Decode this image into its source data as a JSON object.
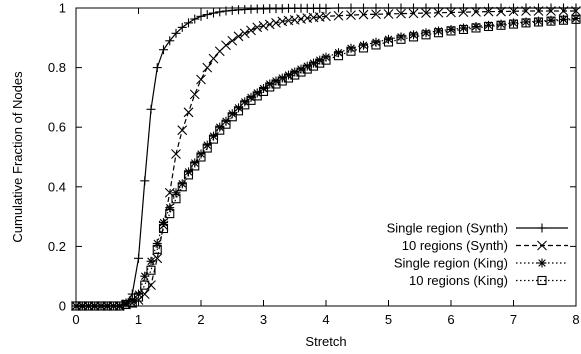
{
  "chart_data": {
    "type": "line",
    "title": "",
    "xlabel": "Stretch",
    "ylabel": "Cumulative Fraction of Nodes",
    "xlim": [
      0,
      8
    ],
    "ylim": [
      0,
      1
    ],
    "x_ticks": [
      "0",
      "1",
      "2",
      "3",
      "4",
      "5",
      "6",
      "7",
      "8"
    ],
    "y_ticks": [
      "0",
      "0.2",
      "0.4",
      "0.6",
      "0.8",
      "1"
    ],
    "grid": false,
    "legend_position": "bottom-right",
    "series": [
      {
        "name": "Single region (Synth)",
        "line_style": "solid",
        "marker": "plus",
        "x": [
          0,
          0.1,
          0.2,
          0.3,
          0.4,
          0.5,
          0.6,
          0.7,
          0.8,
          0.9,
          1.0,
          1.1,
          1.2,
          1.3,
          1.4,
          1.5,
          1.6,
          1.7,
          1.8,
          1.9,
          2.0,
          2.1,
          2.2,
          2.3,
          2.4,
          2.5,
          2.6,
          2.7,
          2.8,
          2.9,
          3.0,
          3.1,
          3.2,
          3.3,
          3.4,
          3.5,
          3.6,
          3.7,
          3.8,
          3.9,
          4.0,
          4.2,
          4.4,
          4.6,
          4.8,
          5.0,
          5.2,
          5.4,
          5.6,
          5.8,
          6.0,
          6.2,
          6.4,
          6.6,
          6.8,
          7.0,
          7.2,
          7.4,
          7.6,
          7.8,
          8.0
        ],
        "y": [
          0,
          0,
          0,
          0,
          0,
          0,
          0,
          0,
          0.01,
          0.04,
          0.16,
          0.42,
          0.66,
          0.8,
          0.86,
          0.89,
          0.915,
          0.935,
          0.95,
          0.963,
          0.972,
          0.978,
          0.983,
          0.987,
          0.99,
          0.992,
          0.994,
          0.995,
          0.996,
          0.997,
          0.997,
          0.998,
          0.998,
          0.998,
          0.999,
          0.999,
          0.999,
          0.999,
          0.999,
          0.999,
          0.999,
          1,
          1,
          1,
          1,
          1,
          1,
          1,
          1,
          1,
          1,
          1,
          1,
          1,
          1,
          1,
          1,
          1,
          1,
          1,
          1
        ]
      },
      {
        "name": "10 regions (Synth)",
        "line_style": "dashed",
        "marker": "cross",
        "x": [
          0,
          0.1,
          0.2,
          0.3,
          0.4,
          0.5,
          0.6,
          0.7,
          0.8,
          0.9,
          1.0,
          1.1,
          1.2,
          1.3,
          1.4,
          1.5,
          1.6,
          1.7,
          1.8,
          1.9,
          2.0,
          2.1,
          2.2,
          2.3,
          2.4,
          2.5,
          2.6,
          2.7,
          2.8,
          2.9,
          3.0,
          3.1,
          3.2,
          3.3,
          3.4,
          3.5,
          3.6,
          3.7,
          3.8,
          3.9,
          4.0,
          4.2,
          4.4,
          4.6,
          4.8,
          5.0,
          5.2,
          5.4,
          5.6,
          5.8,
          6.0,
          6.2,
          6.4,
          6.6,
          6.8,
          7.0,
          7.2,
          7.4,
          7.6,
          7.8,
          8.0
        ],
        "y": [
          0,
          0,
          0,
          0,
          0,
          0,
          0,
          0,
          0.005,
          0.01,
          0.02,
          0.04,
          0.07,
          0.16,
          0.27,
          0.38,
          0.51,
          0.59,
          0.65,
          0.71,
          0.76,
          0.8,
          0.83,
          0.855,
          0.875,
          0.89,
          0.905,
          0.915,
          0.925,
          0.935,
          0.94,
          0.945,
          0.95,
          0.955,
          0.958,
          0.96,
          0.963,
          0.966,
          0.968,
          0.97,
          0.972,
          0.974,
          0.976,
          0.978,
          0.979,
          0.98,
          0.981,
          0.982,
          0.983,
          0.984,
          0.985,
          0.986,
          0.987,
          0.988,
          0.988,
          0.989,
          0.99,
          0.99,
          0.99,
          0.99,
          0.99
        ]
      },
      {
        "name": "Single region (King)",
        "line_style": "dotted",
        "marker": "star",
        "x": [
          0,
          0.1,
          0.2,
          0.3,
          0.4,
          0.5,
          0.6,
          0.7,
          0.8,
          0.9,
          1.0,
          1.1,
          1.2,
          1.3,
          1.4,
          1.5,
          1.6,
          1.7,
          1.8,
          1.9,
          2.0,
          2.1,
          2.2,
          2.3,
          2.4,
          2.5,
          2.6,
          2.7,
          2.8,
          2.9,
          3.0,
          3.1,
          3.2,
          3.3,
          3.4,
          3.5,
          3.6,
          3.7,
          3.8,
          3.9,
          4.0,
          4.2,
          4.4,
          4.6,
          4.8,
          5.0,
          5.2,
          5.4,
          5.6,
          5.8,
          6.0,
          6.2,
          6.4,
          6.6,
          6.8,
          7.0,
          7.2,
          7.4,
          7.6,
          7.8,
          8.0
        ],
        "y": [
          0,
          0,
          0,
          0,
          0,
          0,
          0,
          0,
          0.01,
          0.02,
          0.04,
          0.1,
          0.15,
          0.21,
          0.28,
          0.33,
          0.38,
          0.41,
          0.45,
          0.48,
          0.51,
          0.54,
          0.57,
          0.6,
          0.62,
          0.645,
          0.665,
          0.685,
          0.7,
          0.715,
          0.73,
          0.745,
          0.755,
          0.765,
          0.775,
          0.785,
          0.795,
          0.805,
          0.815,
          0.825,
          0.835,
          0.85,
          0.865,
          0.875,
          0.885,
          0.895,
          0.903,
          0.91,
          0.917,
          0.923,
          0.928,
          0.933,
          0.938,
          0.942,
          0.946,
          0.95,
          0.953,
          0.956,
          0.959,
          0.962,
          0.965
        ]
      },
      {
        "name": "10 regions (King)",
        "line_style": "dotted",
        "marker": "square",
        "x": [
          0,
          0.1,
          0.2,
          0.3,
          0.4,
          0.5,
          0.6,
          0.7,
          0.8,
          0.9,
          1.0,
          1.1,
          1.2,
          1.3,
          1.4,
          1.5,
          1.6,
          1.7,
          1.8,
          1.9,
          2.0,
          2.1,
          2.2,
          2.3,
          2.4,
          2.5,
          2.6,
          2.7,
          2.8,
          2.9,
          3.0,
          3.1,
          3.2,
          3.3,
          3.4,
          3.5,
          3.6,
          3.7,
          3.8,
          3.9,
          4.0,
          4.2,
          4.4,
          4.6,
          4.8,
          5.0,
          5.2,
          5.4,
          5.6,
          5.8,
          6.0,
          6.2,
          6.4,
          6.6,
          6.8,
          7.0,
          7.2,
          7.4,
          7.6,
          7.8,
          8.0
        ],
        "y": [
          0,
          0,
          0,
          0,
          0,
          0,
          0,
          0,
          0.005,
          0.01,
          0.03,
          0.07,
          0.12,
          0.19,
          0.26,
          0.31,
          0.36,
          0.4,
          0.44,
          0.47,
          0.5,
          0.53,
          0.56,
          0.59,
          0.61,
          0.635,
          0.655,
          0.675,
          0.69,
          0.705,
          0.72,
          0.735,
          0.745,
          0.755,
          0.765,
          0.775,
          0.785,
          0.795,
          0.805,
          0.815,
          0.825,
          0.84,
          0.855,
          0.866,
          0.876,
          0.886,
          0.895,
          0.903,
          0.91,
          0.917,
          0.923,
          0.928,
          0.933,
          0.938,
          0.942,
          0.946,
          0.95,
          0.953,
          0.956,
          0.959,
          0.962
        ]
      }
    ]
  }
}
